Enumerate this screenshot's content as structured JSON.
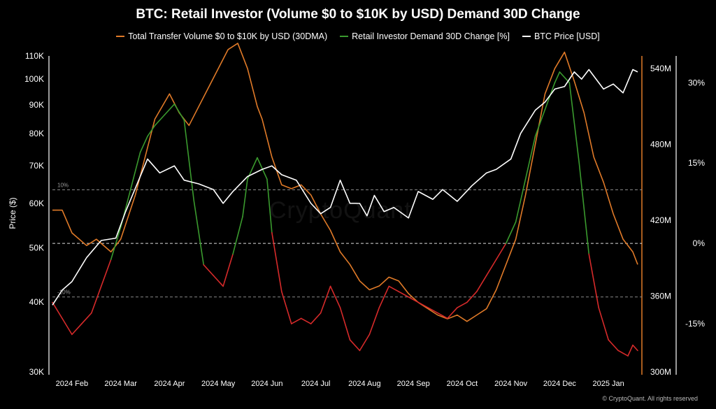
{
  "title": "BTC: Retail Investor (Volume $0 to $10K by USD) Demand 30D Change",
  "legend": [
    {
      "label": "Total Transfer Volume $0 to $10K by USD (30DMA)",
      "color": "#e07a28"
    },
    {
      "label": "Retail Investor Demand 30D Change [%]",
      "color": "#3a9a2e"
    },
    {
      "label": "BTC Price [USD]",
      "color": "#ffffff"
    }
  ],
  "watermark": "CryptoQuant",
  "credit": "© CryptoQuant. All rights reserved",
  "colors": {
    "background": "#000000",
    "volume": "#e07a28",
    "demand_positive": "#3a9a2e",
    "demand_negative": "#d62a2a",
    "price": "#ffffff",
    "grid": "#888888"
  },
  "chart_data": {
    "type": "line",
    "x_ticks": [
      "2024 Feb",
      "2024 Mar",
      "2024 Apr",
      "2024 May",
      "2024 Jun",
      "2024 Jul",
      "2024 Aug",
      "2024 Sep",
      "2024 Oct",
      "2024 Nov",
      "2024 Dec",
      "2025 Jan"
    ],
    "x_tick_months": [
      1,
      2,
      3,
      4,
      5,
      6,
      7,
      8,
      9,
      10,
      11,
      12
    ],
    "x_range_months": [
      0.6,
      12.6
    ],
    "y_left": {
      "label": "Price ($)",
      "scale": "log",
      "ticks": [
        "110K",
        "100K",
        "90K",
        "80K",
        "70K",
        "60K",
        "50K",
        "40K",
        "30K"
      ],
      "tick_values": [
        110000,
        100000,
        90000,
        80000,
        70000,
        60000,
        50000,
        40000,
        30000
      ],
      "range": [
        30000,
        110000
      ]
    },
    "y_mid": {
      "ticks": [
        "540M",
        "480M",
        "420M",
        "360M",
        "300M"
      ],
      "tick_values": [
        540,
        480,
        420,
        360,
        300
      ],
      "range": [
        300,
        550
      ],
      "unit": "M USD"
    },
    "y_right": {
      "ticks": [
        "30%",
        "15%",
        "0%",
        "-15%"
      ],
      "tick_values": [
        30,
        15,
        0,
        -15
      ],
      "range": [
        -24,
        35
      ]
    },
    "reference_lines": [
      {
        "label": "10%",
        "value": 10
      },
      {
        "label": "",
        "value": 0
      },
      {
        "label": "-10%",
        "value": -10
      }
    ],
    "series": [
      {
        "name": "BTC Price [USD]",
        "axis": "left",
        "x": [
          0.6,
          0.8,
          1.0,
          1.3,
          1.6,
          1.9,
          2.1,
          2.4,
          2.55,
          2.8,
          3.1,
          3.3,
          3.6,
          3.9,
          4.1,
          4.3,
          4.6,
          4.9,
          5.1,
          5.3,
          5.6,
          5.9,
          6.1,
          6.3,
          6.5,
          6.7,
          6.9,
          7.05,
          7.2,
          7.4,
          7.6,
          7.9,
          8.1,
          8.4,
          8.6,
          8.9,
          9.2,
          9.5,
          9.7,
          10.0,
          10.2,
          10.5,
          10.7,
          10.9,
          11.1,
          11.3,
          11.45,
          11.6,
          11.9,
          12.1,
          12.3,
          12.5,
          12.6
        ],
        "y": [
          39500,
          42000,
          43500,
          48000,
          51500,
          52000,
          58000,
          67000,
          72000,
          68000,
          70000,
          66000,
          65000,
          63500,
          60000,
          63000,
          67000,
          69000,
          70000,
          67500,
          66000,
          60000,
          57500,
          59000,
          66000,
          60000,
          60000,
          57000,
          62000,
          58000,
          59000,
          56500,
          63000,
          61000,
          63500,
          60500,
          64500,
          68000,
          69000,
          72000,
          80000,
          88000,
          91000,
          96000,
          97000,
          103000,
          100000,
          104000,
          96000,
          98000,
          94500,
          104000,
          103000
        ]
      },
      {
        "name": "Total Transfer Volume $0 to $10K by USD (30DMA)",
        "axis": "mid",
        "x": [
          0.6,
          0.8,
          1.0,
          1.3,
          1.5,
          1.8,
          2.0,
          2.3,
          2.5,
          2.7,
          3.0,
          3.2,
          3.4,
          3.6,
          3.8,
          4.0,
          4.2,
          4.4,
          4.6,
          4.8,
          4.9,
          5.1,
          5.3,
          5.5,
          5.7,
          5.9,
          6.1,
          6.3,
          6.5,
          6.7,
          6.9,
          7.1,
          7.3,
          7.5,
          7.7,
          7.9,
          8.1,
          8.3,
          8.5,
          8.7,
          8.9,
          9.1,
          9.3,
          9.5,
          9.7,
          9.9,
          10.1,
          10.3,
          10.5,
          10.7,
          10.9,
          11.1,
          11.3,
          11.5,
          11.7,
          11.9,
          12.1,
          12.3,
          12.5,
          12.6
        ],
        "y": [
          428,
          428,
          410,
          400,
          405,
          395,
          405,
          440,
          470,
          500,
          520,
          505,
          495,
          510,
          525,
          540,
          555,
          560,
          540,
          510,
          500,
          470,
          448,
          445,
          448,
          440,
          425,
          412,
          395,
          385,
          372,
          365,
          368,
          375,
          372,
          362,
          355,
          350,
          345,
          342,
          345,
          340,
          345,
          350,
          365,
          385,
          405,
          440,
          480,
          520,
          540,
          553,
          530,
          505,
          470,
          450,
          425,
          405,
          395,
          385
        ]
      },
      {
        "name": "Retail Investor Demand 30D Change [%]",
        "axis": "right",
        "x": [
          0.6,
          0.8,
          1.0,
          1.2,
          1.4,
          1.6,
          1.8,
          2.0,
          2.2,
          2.4,
          2.55,
          2.7,
          2.9,
          3.1,
          3.3,
          3.5,
          3.7,
          3.9,
          4.1,
          4.3,
          4.5,
          4.6,
          4.8,
          5.0,
          5.1,
          5.3,
          5.5,
          5.7,
          5.9,
          6.1,
          6.3,
          6.5,
          6.7,
          6.9,
          7.1,
          7.3,
          7.5,
          7.7,
          7.9,
          8.1,
          8.3,
          8.5,
          8.7,
          8.9,
          9.1,
          9.3,
          9.5,
          9.7,
          9.9,
          10.1,
          10.3,
          10.5,
          10.7,
          10.9,
          11.0,
          11.2,
          11.4,
          11.6,
          11.8,
          12.0,
          12.2,
          12.4,
          12.5,
          12.6
        ],
        "y": [
          -11,
          -14,
          -17,
          -15,
          -13,
          -8,
          -3,
          3,
          10,
          17,
          20,
          22,
          24,
          26,
          23,
          8,
          -4,
          -6,
          -8,
          -2,
          5,
          12,
          16,
          12,
          2,
          -9,
          -15,
          -14,
          -15,
          -13,
          -8,
          -12,
          -18,
          -20,
          -17,
          -12,
          -8,
          -9,
          -10,
          -11,
          -12,
          -13,
          -14,
          -12,
          -11,
          -9,
          -6,
          -3,
          0,
          4,
          12,
          20,
          25,
          30,
          32,
          30,
          15,
          -2,
          -12,
          -18,
          -20,
          -21,
          -19,
          -20
        ]
      }
    ]
  }
}
